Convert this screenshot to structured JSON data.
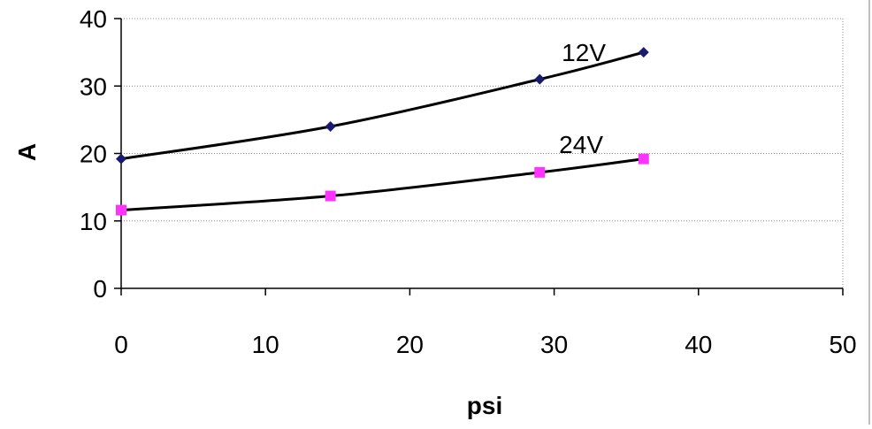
{
  "chart_data": {
    "type": "line",
    "title": "",
    "xlabel": "psi",
    "ylabel": "A",
    "xlim": [
      0,
      50
    ],
    "ylim": [
      0,
      40
    ],
    "xticks": [
      0,
      10,
      20,
      30,
      40,
      50
    ],
    "yticks": [
      0,
      10,
      20,
      30,
      40
    ],
    "grid": "horizontal dotted",
    "legend": "none",
    "series": [
      {
        "name": "12V",
        "x": [
          0,
          14.5,
          29,
          36.2
        ],
        "y": [
          19.2,
          24,
          31,
          35
        ],
        "marker": "diamond",
        "marker_color": "#1a1a6e",
        "line_color": "#000000"
      },
      {
        "name": "24V",
        "x": [
          0,
          14.5,
          29,
          36.2
        ],
        "y": [
          11.6,
          13.7,
          17.2,
          19.2
        ],
        "marker": "square",
        "marker_color": "#ff33ff",
        "line_color": "#000000"
      }
    ]
  }
}
